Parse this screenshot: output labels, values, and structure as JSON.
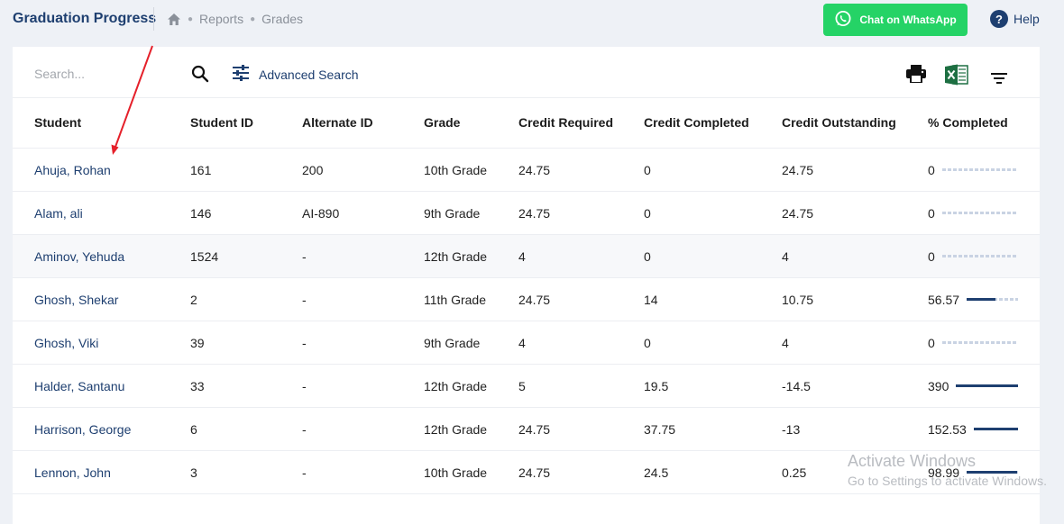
{
  "header": {
    "title": "Graduation Progress",
    "breadcrumb": [
      "Reports",
      "Grades"
    ],
    "whatsapp_label": "Chat on WhatsApp",
    "help_label": "Help",
    "help_glyph": "?"
  },
  "toolbar": {
    "search_placeholder": "Search...",
    "advanced_search_label": "Advanced Search",
    "icons": [
      "search-icon",
      "sliders-icon",
      "print-icon",
      "excel-icon",
      "filter-icon"
    ]
  },
  "table": {
    "columns": [
      "Student",
      "Student ID",
      "Alternate ID",
      "Grade",
      "Credit Required",
      "Credit Completed",
      "Credit Outstanding",
      "% Completed"
    ],
    "rows": [
      {
        "student": "Ahuja, Rohan",
        "student_id": "161",
        "alternate_id": "200",
        "grade": "10th Grade",
        "credit_required": "24.75",
        "credit_completed": "0",
        "credit_outstanding": "24.75",
        "percent_completed": "0",
        "progress": 0
      },
      {
        "student": "Alam, ali",
        "student_id": "146",
        "alternate_id": "AI-890",
        "grade": "9th Grade",
        "credit_required": "24.75",
        "credit_completed": "0",
        "credit_outstanding": "24.75",
        "percent_completed": "0",
        "progress": 0
      },
      {
        "student": "Aminov, Yehuda",
        "student_id": "1524",
        "alternate_id": "-",
        "grade": "12th Grade",
        "credit_required": "4",
        "credit_completed": "0",
        "credit_outstanding": "4",
        "percent_completed": "0",
        "progress": 0
      },
      {
        "student": "Ghosh, Shekar",
        "student_id": "2",
        "alternate_id": "-",
        "grade": "11th Grade",
        "credit_required": "24.75",
        "credit_completed": "14",
        "credit_outstanding": "10.75",
        "percent_completed": "56.57",
        "progress": 56.57
      },
      {
        "student": "Ghosh, Viki",
        "student_id": "39",
        "alternate_id": "-",
        "grade": "9th Grade",
        "credit_required": "4",
        "credit_completed": "0",
        "credit_outstanding": "4",
        "percent_completed": "0",
        "progress": 0
      },
      {
        "student": "Halder, Santanu",
        "student_id": "33",
        "alternate_id": "-",
        "grade": "12th Grade",
        "credit_required": "5",
        "credit_completed": "19.5",
        "credit_outstanding": "-14.5",
        "percent_completed": "390",
        "progress": 100
      },
      {
        "student": "Harrison, George",
        "student_id": "6",
        "alternate_id": "-",
        "grade": "12th Grade",
        "credit_required": "24.75",
        "credit_completed": "37.75",
        "credit_outstanding": "-13",
        "percent_completed": "152.53",
        "progress": 100
      },
      {
        "student": "Lennon, John",
        "student_id": "3",
        "alternate_id": "-",
        "grade": "10th Grade",
        "credit_required": "24.75",
        "credit_completed": "24.5",
        "credit_outstanding": "0.25",
        "percent_completed": "98.99",
        "progress": 98.99
      }
    ]
  },
  "watermark": {
    "title": "Activate Windows",
    "subtitle": "Go to Settings to activate Windows."
  },
  "colors": {
    "brand": "#1e3f70",
    "whatsapp": "#25d366",
    "annotation_arrow": "#e5202a",
    "progress_track": "#c9d3e3"
  }
}
